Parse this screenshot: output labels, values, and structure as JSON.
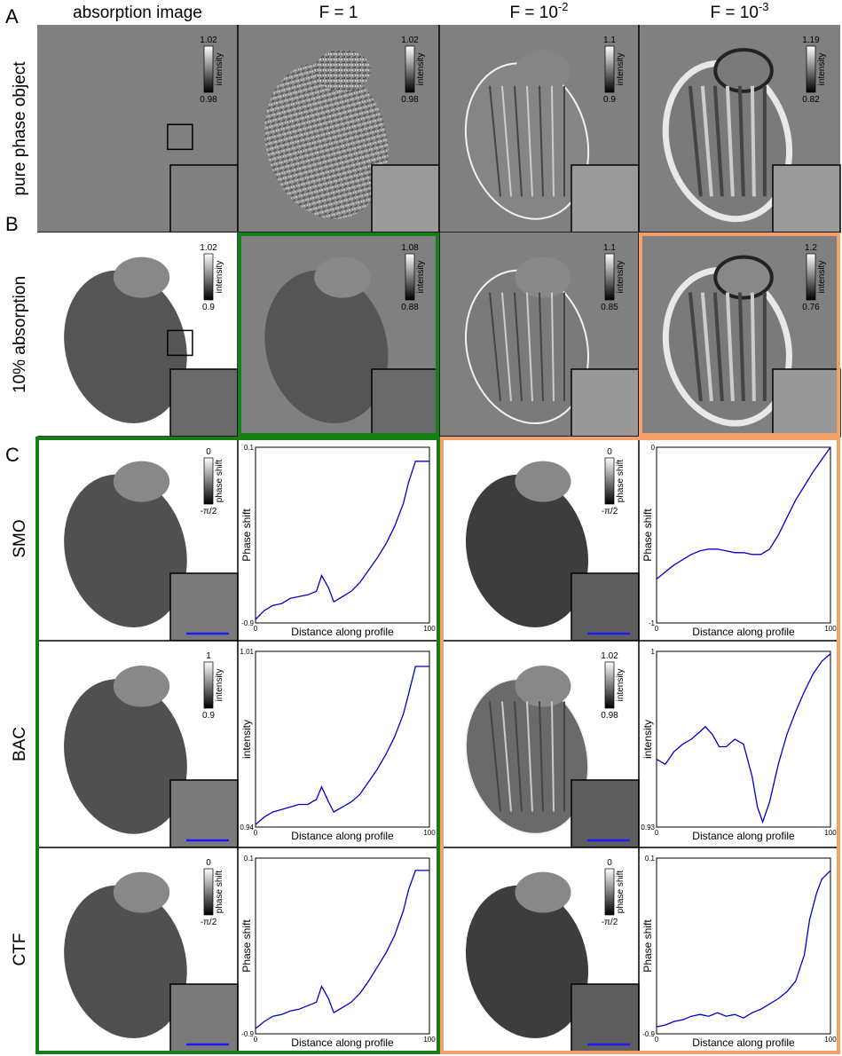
{
  "columns": [
    {
      "text": "absorption image"
    },
    {
      "text": "F = 1"
    },
    {
      "text": "F = 10",
      "sup": "-2"
    },
    {
      "text": "F = 10",
      "sup": "-3"
    }
  ],
  "rows": [
    {
      "letter": "A",
      "label": "pure phase object",
      "colorbars": [
        {
          "top": "1.02",
          "bottom": "0.98",
          "label": "intensity"
        },
        {
          "top": "1.02",
          "bottom": "0.98",
          "label": "intensity"
        },
        {
          "top": "1.1",
          "bottom": "0.9",
          "label": "intensity"
        },
        {
          "top": "1.19",
          "bottom": "0.82",
          "label": "intensity"
        }
      ]
    },
    {
      "letter": "B",
      "label": "10% absorption",
      "colorbars": [
        {
          "top": "1.02",
          "bottom": "0.9",
          "label": "intensity"
        },
        {
          "top": "1.08",
          "bottom": "0.88",
          "label": "intensity"
        },
        {
          "top": "1.1",
          "bottom": "0.85",
          "label": "intensity"
        },
        {
          "top": "1.2",
          "bottom": "0.76",
          "label": "intensity"
        }
      ]
    }
  ],
  "panel_c": {
    "letter": "C",
    "rows": [
      {
        "label": "SMO",
        "colorbars": [
          {
            "top": "0",
            "bottom": "-π/2",
            "label": "phase shift"
          },
          {
            "top": "0",
            "bottom": "-π/2",
            "label": "phase shift"
          }
        ],
        "plots": [
          {
            "type": "line",
            "ylabel": "Phase shift",
            "xlabel": "Distance along profile",
            "color": "#0000cc",
            "xlim": [
              0,
              100
            ],
            "ylim": [
              -0.9,
              0.1
            ],
            "xticks": [
              0,
              100
            ],
            "yticks": [
              -0.9,
              0.1
            ],
            "x": [
              0,
              5,
              10,
              15,
              20,
              25,
              30,
              35,
              38,
              42,
              45,
              50,
              55,
              60,
              65,
              70,
              75,
              80,
              85,
              88,
              92,
              100
            ],
            "values": [
              -0.88,
              -0.83,
              -0.8,
              -0.79,
              -0.76,
              -0.75,
              -0.74,
              -0.72,
              -0.63,
              -0.7,
              -0.78,
              -0.75,
              -0.72,
              -0.67,
              -0.6,
              -0.53,
              -0.45,
              -0.35,
              -0.22,
              -0.1,
              0.02,
              0.02
            ]
          },
          {
            "type": "line",
            "ylabel": "Phase shift",
            "xlabel": "Distance along profile",
            "color": "#0000cc",
            "xlim": [
              0,
              100
            ],
            "ylim": [
              -1,
              0
            ],
            "xticks": [
              0,
              100
            ],
            "yticks": [
              -1,
              0
            ],
            "x": [
              0,
              5,
              10,
              15,
              20,
              25,
              30,
              35,
              40,
              45,
              50,
              55,
              60,
              65,
              70,
              75,
              80,
              85,
              90,
              95,
              100
            ],
            "values": [
              -0.75,
              -0.71,
              -0.67,
              -0.64,
              -0.61,
              -0.59,
              -0.58,
              -0.58,
              -0.59,
              -0.6,
              -0.6,
              -0.61,
              -0.61,
              -0.58,
              -0.5,
              -0.4,
              -0.3,
              -0.22,
              -0.14,
              -0.07,
              0
            ]
          }
        ]
      },
      {
        "label": "BAC",
        "colorbars": [
          {
            "top": "1",
            "bottom": "0.9",
            "label": "intensity"
          },
          {
            "top": "1.02",
            "bottom": "0.98",
            "label": "intensity"
          }
        ],
        "plots": [
          {
            "type": "line",
            "ylabel": "intensity",
            "xlabel": "Distance along profile",
            "color": "#0000cc",
            "xlim": [
              0,
              100
            ],
            "ylim": [
              0.94,
              1.01
            ],
            "xticks": [
              0,
              100
            ],
            "yticks": [
              {
                "value": 0.94,
                "label": "0.94"
              },
              {
                "value": 1.01,
                "label": "1.01"
              }
            ],
            "x": [
              0,
              5,
              10,
              15,
              20,
              25,
              30,
              35,
              38,
              42,
              45,
              50,
              55,
              60,
              65,
              70,
              75,
              80,
              85,
              88,
              92,
              100
            ],
            "values": [
              0.941,
              0.944,
              0.946,
              0.947,
              0.948,
              0.949,
              0.949,
              0.951,
              0.956,
              0.95,
              0.946,
              0.948,
              0.95,
              0.953,
              0.958,
              0.963,
              0.969,
              0.976,
              0.985,
              0.993,
              1.004,
              1.004
            ]
          },
          {
            "type": "line",
            "ylabel": "intensity",
            "xlabel": "Distance along profile",
            "color": "#0000cc",
            "xlim": [
              0,
              100
            ],
            "ylim": [
              0.93,
              1
            ],
            "xticks": [
              0,
              100
            ],
            "yticks": [
              {
                "value": 0.93,
                "label": "0.93"
              },
              1
            ],
            "x": [
              0,
              5,
              10,
              15,
              20,
              25,
              28,
              32,
              36,
              40,
              45,
              50,
              55,
              58,
              61,
              65,
              70,
              75,
              80,
              85,
              90,
              95,
              100
            ],
            "values": [
              0.957,
              0.955,
              0.96,
              0.963,
              0.965,
              0.968,
              0.97,
              0.967,
              0.962,
              0.962,
              0.965,
              0.963,
              0.95,
              0.938,
              0.932,
              0.94,
              0.955,
              0.967,
              0.976,
              0.984,
              0.991,
              0.996,
              0.999
            ]
          }
        ]
      },
      {
        "label": "CTF",
        "colorbars": [
          {
            "top": "0",
            "bottom": "-π/2",
            "label": "phase shift"
          },
          {
            "top": "0",
            "bottom": "-π/2",
            "label": "phase shift"
          }
        ],
        "plots": [
          {
            "type": "line",
            "ylabel": "Phase shift",
            "xlabel": "Distance along profile",
            "color": "#0000cc",
            "xlim": [
              0,
              100
            ],
            "ylim": [
              -0.9,
              0.1
            ],
            "xticks": [
              0,
              100
            ],
            "yticks": [
              -0.9,
              0.1
            ],
            "x": [
              0,
              5,
              10,
              15,
              20,
              25,
              30,
              35,
              38,
              42,
              45,
              50,
              55,
              60,
              65,
              70,
              75,
              80,
              85,
              88,
              92,
              100
            ],
            "values": [
              -0.87,
              -0.83,
              -0.8,
              -0.79,
              -0.77,
              -0.76,
              -0.74,
              -0.72,
              -0.63,
              -0.7,
              -0.78,
              -0.75,
              -0.72,
              -0.67,
              -0.6,
              -0.52,
              -0.44,
              -0.34,
              -0.2,
              -0.08,
              0.03,
              0.03
            ]
          },
          {
            "type": "line",
            "ylabel": "Phase shift",
            "xlabel": "Distance along profile",
            "color": "#0000cc",
            "xlim": [
              0,
              100
            ],
            "ylim": [
              -0.9,
              0.1
            ],
            "xticks": [
              0,
              100
            ],
            "yticks": [
              -0.9,
              0.1
            ],
            "x": [
              0,
              5,
              10,
              15,
              20,
              25,
              30,
              35,
              40,
              45,
              50,
              55,
              60,
              65,
              70,
              75,
              80,
              85,
              88,
              92,
              95,
              100
            ],
            "values": [
              -0.86,
              -0.85,
              -0.83,
              -0.82,
              -0.8,
              -0.79,
              -0.8,
              -0.78,
              -0.8,
              -0.79,
              -0.81,
              -0.78,
              -0.76,
              -0.73,
              -0.7,
              -0.66,
              -0.6,
              -0.45,
              -0.25,
              -0.1,
              -0.02,
              0.03
            ]
          }
        ]
      }
    ]
  }
}
